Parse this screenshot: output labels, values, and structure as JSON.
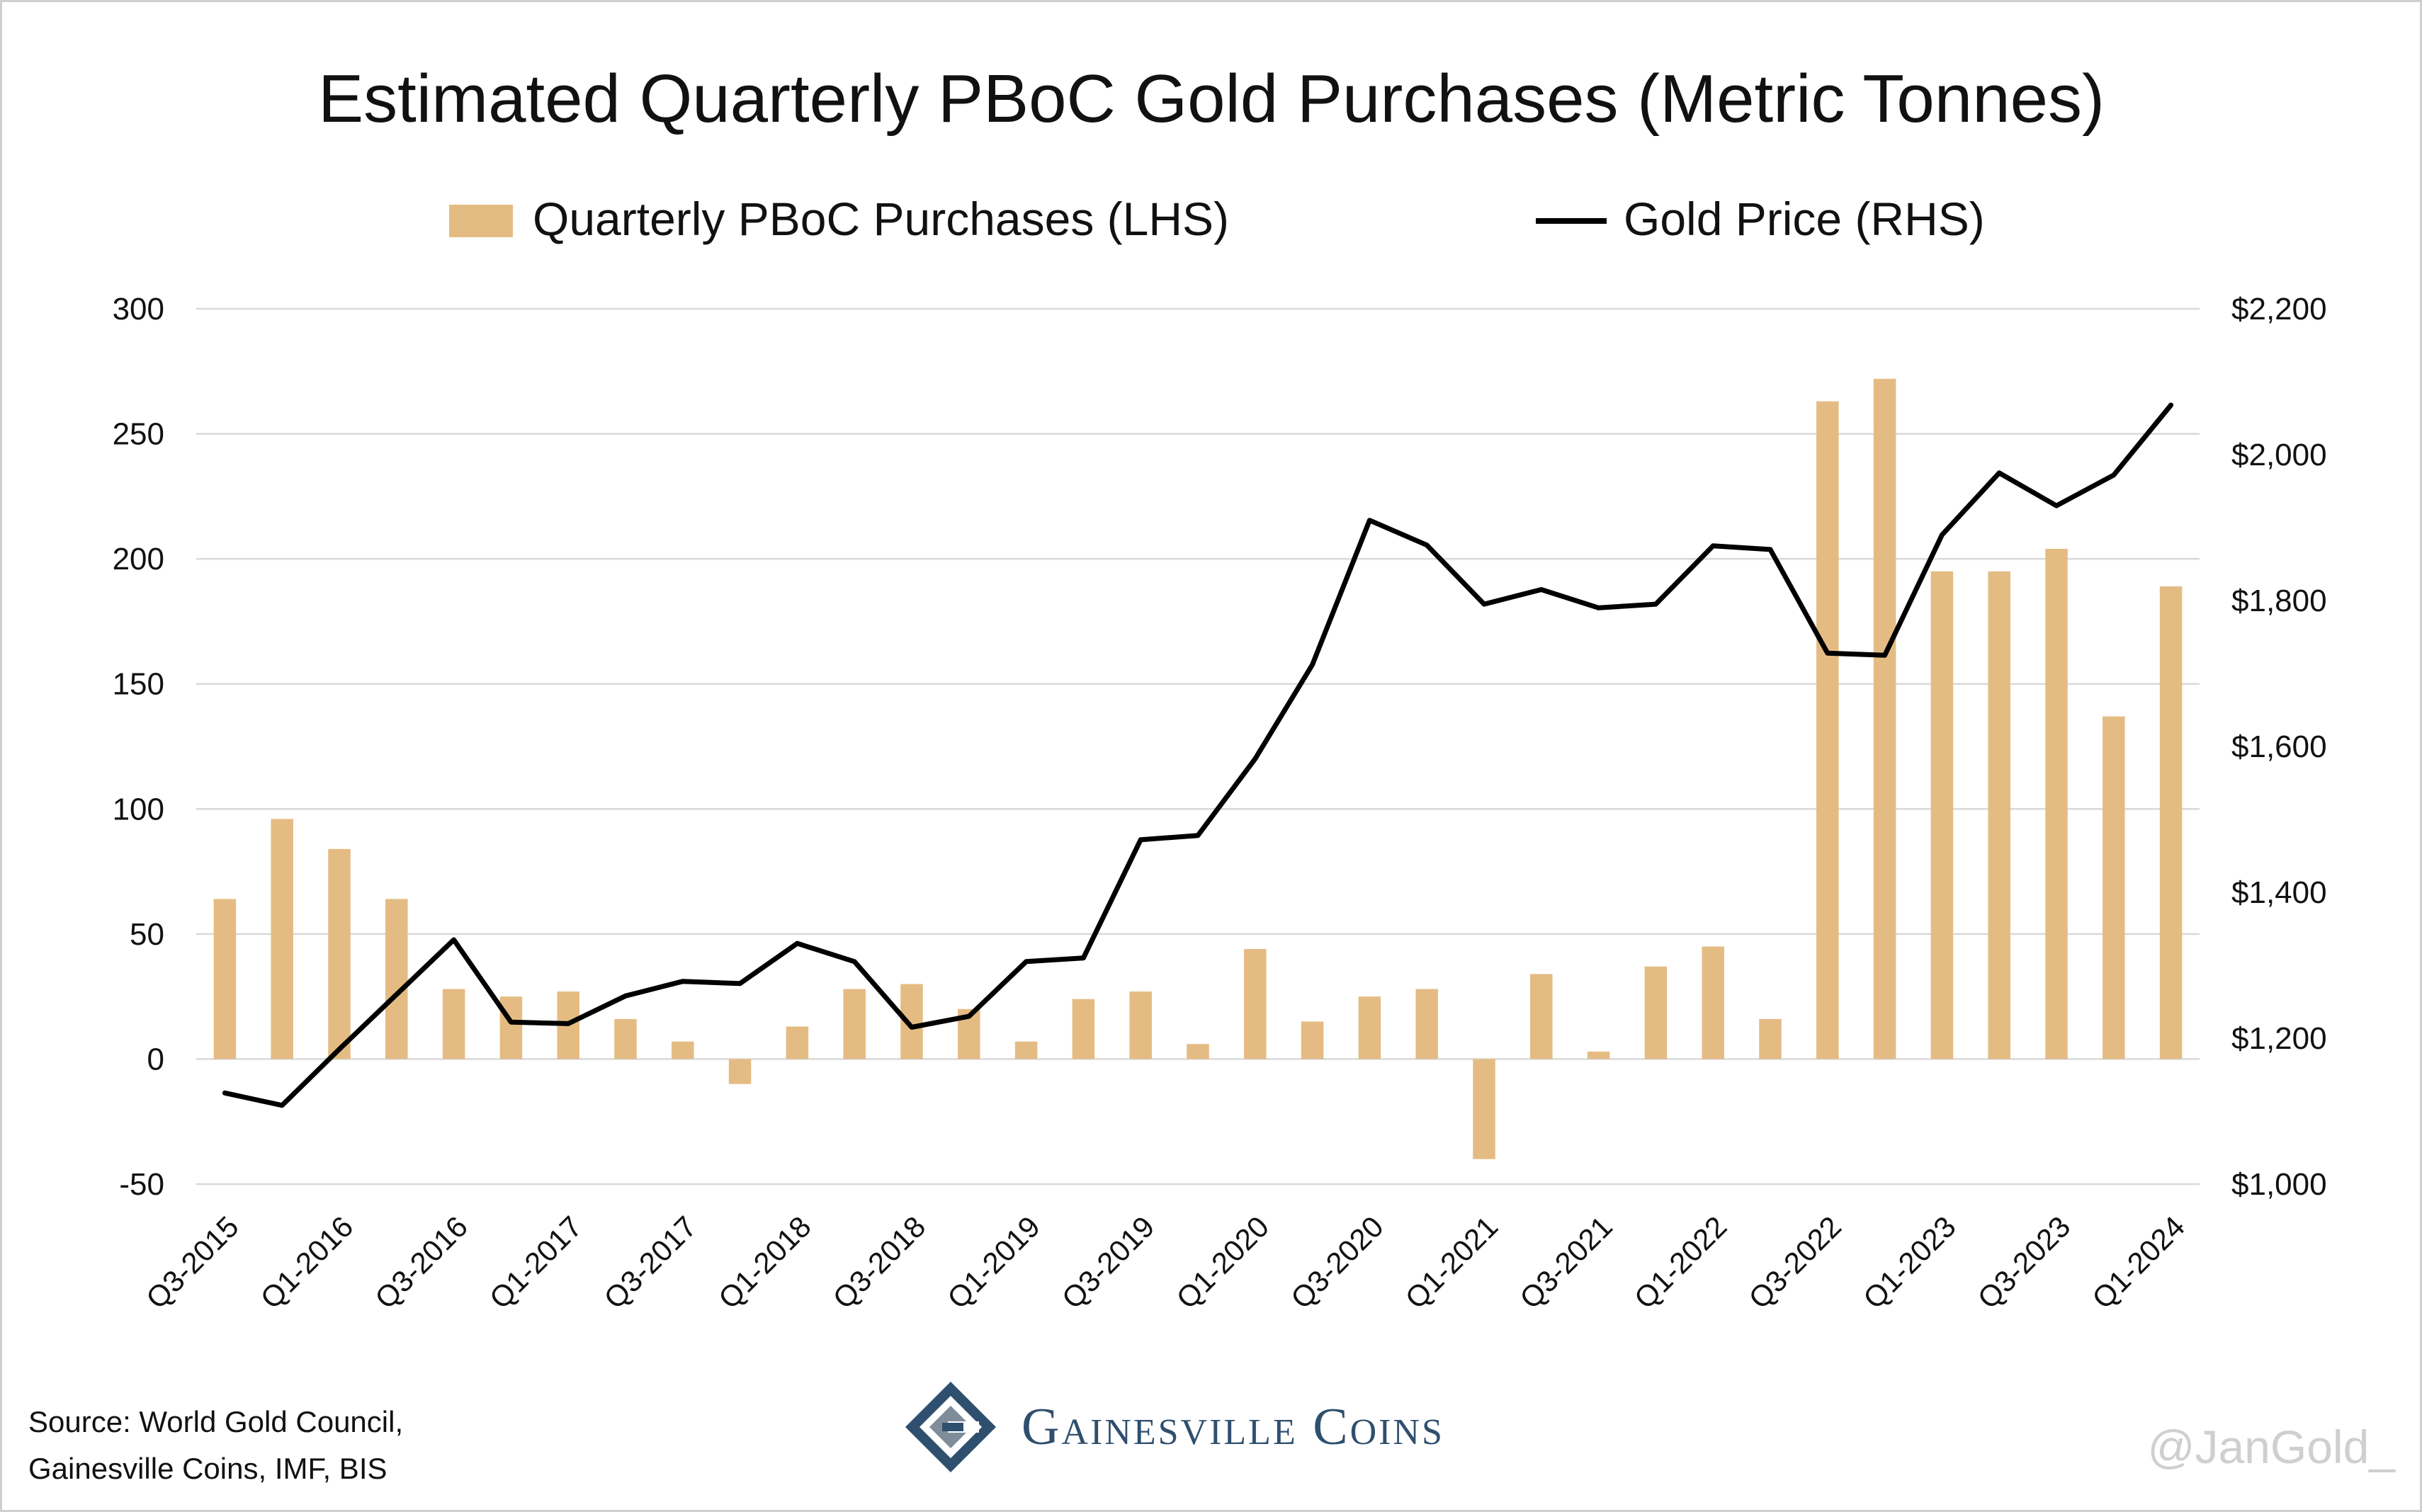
{
  "chart_data": {
    "type": "bar+line",
    "title": "Estimated Quarterly PBoC Gold Purchases (Metric Tonnes)",
    "legend": {
      "placement": "top",
      "bar_label": "Quarterly PBoC Purchases (LHS)",
      "line_label": "Gold Price (RHS)"
    },
    "y_left": {
      "min": -50,
      "max": 300,
      "ticks": [
        "300",
        "250",
        "200",
        "150",
        "100",
        "50",
        "0",
        "-50"
      ]
    },
    "y_right": {
      "min": 1000,
      "max": 2200,
      "ticks": [
        "$2,200",
        "$2,000",
        "$1,800",
        "$1,600",
        "$1,400",
        "$1,200",
        "$1,000"
      ]
    },
    "grid": true,
    "x_tick_labels": [
      "Q3-2015",
      "Q1-2016",
      "Q3-2016",
      "Q1-2017",
      "Q3-2017",
      "Q1-2018",
      "Q3-2018",
      "Q1-2019",
      "Q3-2019",
      "Q1-2020",
      "Q3-2020",
      "Q1-2021",
      "Q3-2021",
      "Q1-2022",
      "Q3-2022",
      "Q1-2023",
      "Q3-2023",
      "Q1-2024"
    ],
    "categories": [
      "Q3-2015",
      "Q4-2015",
      "Q1-2016",
      "Q2-2016",
      "Q3-2016",
      "Q4-2016",
      "Q1-2017",
      "Q2-2017",
      "Q3-2017",
      "Q4-2017",
      "Q1-2018",
      "Q2-2018",
      "Q3-2018",
      "Q4-2018",
      "Q1-2019",
      "Q2-2019",
      "Q3-2019",
      "Q4-2019",
      "Q1-2020",
      "Q2-2020",
      "Q3-2020",
      "Q4-2020",
      "Q1-2021",
      "Q2-2021",
      "Q3-2021",
      "Q4-2021",
      "Q1-2022",
      "Q2-2022",
      "Q3-2022",
      "Q4-2022",
      "Q1-2023",
      "Q2-2023",
      "Q3-2023",
      "Q4-2023",
      "Q1-2024"
    ],
    "series": [
      {
        "name": "Quarterly PBoC Purchases (LHS)",
        "type": "bar",
        "axis": "left",
        "color": "#e4bc83",
        "values": [
          64,
          96,
          84,
          64,
          28,
          25,
          27,
          16,
          7,
          -10,
          13,
          28,
          30,
          20,
          7,
          24,
          27,
          6,
          44,
          15,
          25,
          28,
          -40,
          34,
          3,
          37,
          45,
          16,
          263,
          272,
          195,
          195,
          204,
          137,
          189
        ]
      },
      {
        "name": "Gold Price (RHS)",
        "type": "line",
        "axis": "right",
        "color": "#000000",
        "values": [
          1125,
          1108,
          1185,
          1260,
          1335,
          1222,
          1220,
          1258,
          1278,
          1275,
          1330,
          1305,
          1215,
          1230,
          1305,
          1310,
          1472,
          1478,
          1583,
          1712,
          1910,
          1876,
          1795,
          1815,
          1790,
          1795,
          1875,
          1870,
          1728,
          1725,
          1890,
          1975,
          1930,
          1972,
          2068
        ]
      }
    ]
  },
  "footer": {
    "source_line1": "Source: World Gold Council,",
    "source_line2": "Gainesville Coins, IMF, BIS",
    "brand": "Gainesville Coins",
    "watermark": "@JanGold_"
  }
}
